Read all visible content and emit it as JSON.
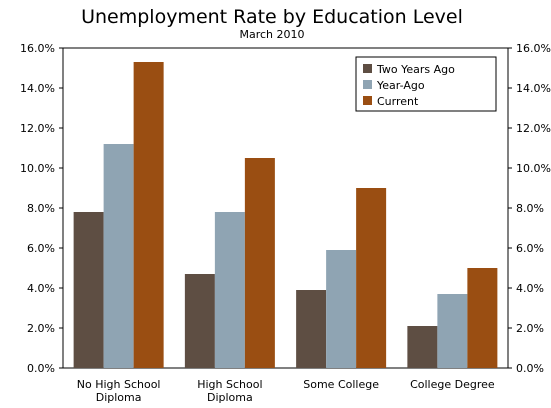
{
  "chart_data": {
    "type": "bar",
    "title": "Unemployment Rate by Education Level",
    "subtitle": "March 2010",
    "categories": [
      [
        "No High School",
        "Diploma"
      ],
      [
        "High School",
        "Diploma"
      ],
      [
        "Some College"
      ],
      [
        "College Degree"
      ]
    ],
    "series": [
      {
        "name": "Two Years Ago",
        "color": "#5e4e43",
        "values": [
          7.8,
          4.7,
          3.9,
          2.1
        ]
      },
      {
        "name": "Year-Ago",
        "color": "#8fa4b3",
        "values": [
          11.2,
          7.8,
          5.9,
          3.7
        ]
      },
      {
        "name": "Current",
        "color": "#9a4e12",
        "values": [
          15.3,
          10.5,
          9.0,
          5.0
        ]
      }
    ],
    "ylim": [
      0,
      16
    ],
    "yticks": [
      "0.0%",
      "2.0%",
      "4.0%",
      "6.0%",
      "8.0%",
      "10.0%",
      "12.0%",
      "14.0%",
      "16.0%"
    ],
    "ytick_values": [
      0,
      2,
      4,
      6,
      8,
      10,
      12,
      14,
      16
    ],
    "secondary_axis": true,
    "grid": false,
    "legend_position": "top-right"
  }
}
